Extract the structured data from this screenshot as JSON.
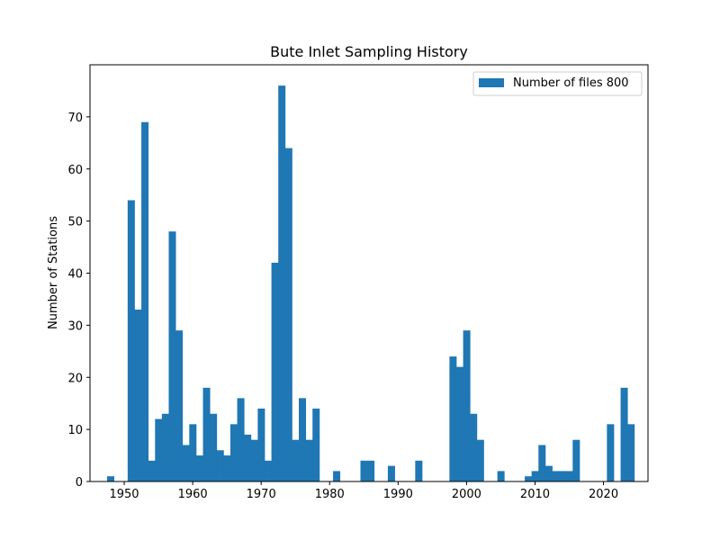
{
  "chart_data": {
    "type": "bar",
    "title": "Bute Inlet Sampling History",
    "xlabel": "",
    "ylabel": "Number of Stations",
    "xlim": [
      1945,
      2026.5
    ],
    "ylim": [
      0,
      80
    ],
    "xticks": [
      1950,
      1960,
      1970,
      1980,
      1990,
      2000,
      2010,
      2020
    ],
    "yticks": [
      0,
      10,
      20,
      30,
      40,
      50,
      60,
      70
    ],
    "bin_width": 1,
    "grid": false,
    "legend_position": "top-right",
    "color": "#1f77b4",
    "series": [
      {
        "name": "Number of files 800",
        "x": [
          1948,
          1951,
          1952,
          1953,
          1954,
          1955,
          1956,
          1957,
          1958,
          1959,
          1960,
          1961,
          1962,
          1963,
          1964,
          1965,
          1966,
          1967,
          1968,
          1969,
          1970,
          1971,
          1972,
          1973,
          1974,
          1975,
          1976,
          1977,
          1978,
          1981,
          1985,
          1986,
          1989,
          1993,
          1998,
          1999,
          2000,
          2001,
          2002,
          2005,
          2009,
          2010,
          2011,
          2012,
          2013,
          2014,
          2015,
          2016,
          2021,
          2023,
          2024
        ],
        "values": [
          1,
          54,
          33,
          69,
          4,
          12,
          13,
          48,
          29,
          7,
          11,
          5,
          18,
          13,
          6,
          5,
          11,
          16,
          9,
          8,
          14,
          4,
          42,
          76,
          64,
          8,
          16,
          8,
          14,
          2,
          4,
          4,
          3,
          4,
          24,
          22,
          29,
          13,
          8,
          2,
          1,
          2,
          7,
          3,
          2,
          2,
          2,
          8,
          11,
          18,
          11
        ]
      }
    ]
  }
}
